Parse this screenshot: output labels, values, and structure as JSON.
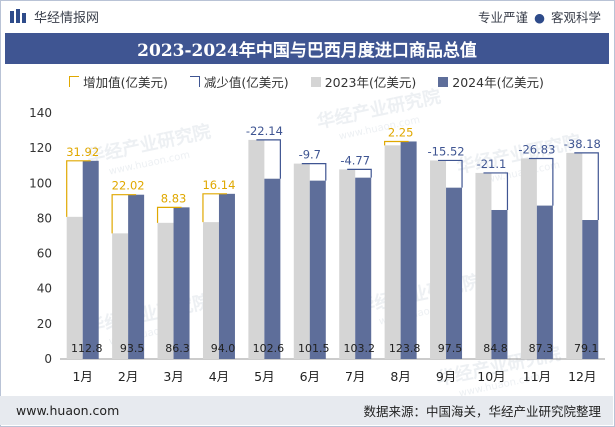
{
  "header": {
    "brand": "华经情报网",
    "tags": [
      "专业严谨",
      "客观科学"
    ],
    "title": "2023-2024年中国与巴西月度进口商品总值"
  },
  "legend": {
    "increase": "增加值(亿美元)",
    "decrease": "减少值(亿美元)",
    "y2023": "2023年(亿美元)",
    "y2024": "2024年(亿美元)"
  },
  "watermark": "华经产业研究院",
  "watermark_url": "www.huaon.com",
  "footer": {
    "url": "www.huaon.com",
    "source": "数据来源：中国海关，华经产业研究院整理"
  },
  "colors": {
    "bar2023": "#d5d5d5",
    "bar2024": "#5e6e9a",
    "increase": "#e0a800",
    "decrease": "#3f5592",
    "title_bg": "#3f5592"
  },
  "chart_data": {
    "type": "bar",
    "title": "2023-2024年中国与巴西月度进口商品总值",
    "categories": [
      "1月",
      "2月",
      "3月",
      "4月",
      "5月",
      "6月",
      "7月",
      "8月",
      "9月",
      "10月",
      "11月",
      "12月"
    ],
    "series": [
      {
        "name": "2023年(亿美元)",
        "values": [
          80.9,
          71.5,
          77.5,
          77.9,
          124.7,
          111.2,
          107.9,
          121.6,
          113.0,
          105.9,
          114.1,
          117.3
        ]
      },
      {
        "name": "2024年(亿美元)",
        "values": [
          112.8,
          93.5,
          86.3,
          94.0,
          102.6,
          101.5,
          103.2,
          123.8,
          97.5,
          84.8,
          87.3,
          79.1
        ]
      }
    ],
    "change": [
      "31.92",
      "22.02",
      "8.83",
      "16.14",
      "-22.14",
      "-9.7",
      "-4.77",
      "2.25",
      "-15.52",
      "-21.1",
      "-26.83",
      "-38.18"
    ],
    "value_labels": [
      "112.8",
      "93.5",
      "86.3",
      "94.0",
      "102.6",
      "101.5",
      "103.2",
      "123.8",
      "97.5",
      "84.8",
      "87.3",
      "79.1"
    ],
    "ylim": [
      0,
      140
    ],
    "yticks": [
      "0",
      "20",
      "40",
      "60",
      "80",
      "100",
      "120",
      "140"
    ],
    "xlabel": "",
    "ylabel": "",
    "legend_position": "top"
  }
}
